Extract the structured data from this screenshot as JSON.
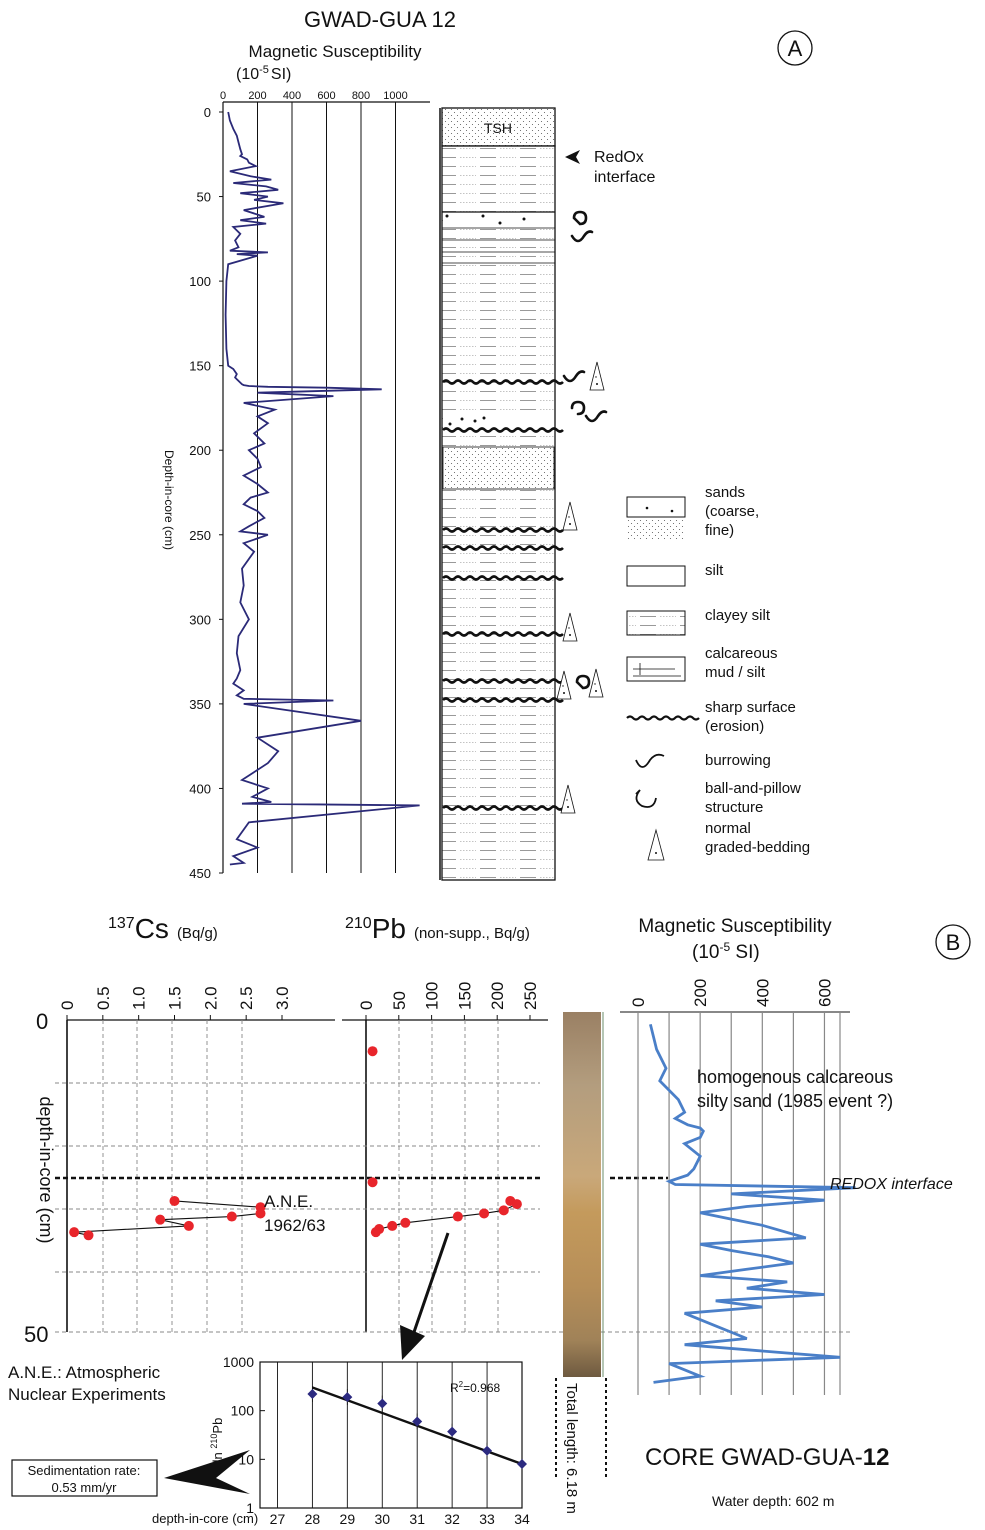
{
  "panelA": {
    "title": "GWAD-GUA 12",
    "letter": "A",
    "ms_title1": "Magnetic Susceptibility",
    "ms_title2": "(10",
    "ms_title2_sup": "-5",
    "ms_title2_end": "SI)",
    "ylabel": "Depth-in-core (cm)",
    "x_ticks": [
      "0",
      "200",
      "400",
      "600",
      "800",
      "1000"
    ],
    "y_ticks": [
      "0",
      "50",
      "100",
      "150",
      "200",
      "250",
      "300",
      "350",
      "400",
      "450"
    ],
    "tsh_label": "TSH",
    "redox1": "RedOx",
    "redox2": "interface",
    "legend": [
      {
        "key": "sands",
        "lines": [
          "sands",
          "(coarse,",
          "fine)"
        ]
      },
      {
        "key": "silt",
        "lines": [
          "silt"
        ]
      },
      {
        "key": "clayey-silt",
        "lines": [
          "clayey silt"
        ]
      },
      {
        "key": "calcareous",
        "lines": [
          "calcareous",
          "mud / silt"
        ]
      },
      {
        "key": "sharp-surface",
        "lines": [
          "sharp surface",
          "(erosion)"
        ]
      },
      {
        "key": "burrowing",
        "lines": [
          "burrowing"
        ]
      },
      {
        "key": "ball-pillow",
        "lines": [
          "ball-and-pillow",
          "structure"
        ]
      },
      {
        "key": "graded",
        "lines": [
          "normal",
          "graded-bedding"
        ]
      }
    ]
  },
  "panelB": {
    "letter": "B",
    "cs_label": "Cs",
    "cs_sup": "137",
    "cs_unit": "(Bq/g)",
    "pb_label": "Pb",
    "pb_sup": "210",
    "pb_unit": "(non-supp., Bq/g)",
    "ms_title1": "Magnetic Susceptibility",
    "ms_title2": "(10",
    "ms_title2_sup": "-5",
    "ms_title2_end": " SI)",
    "ylabel": "depth-in-core (cm)",
    "y0": "0",
    "y50": "50",
    "cs_ticks": [
      "0",
      "0.5",
      "1.0",
      "1.5",
      "2.0",
      "2.5",
      "3.0"
    ],
    "pb_ticks": [
      "0",
      "50",
      "100",
      "150",
      "200",
      "250"
    ],
    "ms_ticks": [
      "0",
      "200",
      "400",
      "600"
    ],
    "ane1": "A.N.E.",
    "ane2": "1962/63",
    "ane_note1": "A.N.E.: Atmospheric",
    "ane_note2": "Nuclear Experiments",
    "homog1": "homogenous calcareous",
    "homog2": "silty sand (1985 event ?)",
    "redox": "REDOX interface",
    "total_length": "Total length: 6.18 m",
    "core_title": "CORE GWAD-GUA-",
    "core_title_bold": "12",
    "water_depth": "Water depth: 602 m",
    "sed_rate1": "Sedimentation rate:",
    "sed_rate2": "0.53 mm/yr"
  },
  "inset": {
    "ylabel": "ln ",
    "ylabel_sup": "210",
    "ylabel_end": "Pb",
    "xlabel": "depth-in-core (cm)",
    "x_ticks": [
      "27",
      "28",
      "29",
      "30",
      "31",
      "32",
      "33",
      "34"
    ],
    "y_ticks": [
      "1000",
      "100",
      "10",
      "1"
    ],
    "r2": "R",
    "r2_sup": "2",
    "r2_val": "=0.968"
  },
  "chart_data": [
    {
      "type": "line",
      "title": "Magnetic Susceptibility (10-5 SI)",
      "ylabel": "Depth-in-core (cm)",
      "xlim": [
        0,
        1200
      ],
      "ylim": [
        450,
        0
      ],
      "series": [
        {
          "name": "",
          "x": [
            30,
            40,
            60,
            80,
            90,
            100,
            110,
            100,
            120,
            140,
            150,
            190,
            40,
            160,
            280,
            60,
            250,
            320,
            100,
            260,
            180,
            350,
            120,
            240,
            100,
            250,
            60,
            100,
            70,
            90,
            40,
            260,
            80,
            200,
            30,
            20,
            15,
            20,
            30,
            60,
            80,
            70,
            80,
            90,
            100,
            110,
            120,
            150,
            260,
            600,
            920,
            200,
            640,
            120,
            300,
            200,
            260,
            180,
            240,
            150,
            200,
            220,
            120,
            200,
            260,
            160,
            120,
            200,
            240,
            150,
            100,
            260,
            120,
            180,
            110,
            120,
            100,
            150,
            90,
            80,
            100,
            80,
            60,
            90,
            120,
            80,
            100,
            120,
            640,
            120,
            800,
            200,
            320,
            260,
            110,
            260,
            170,
            280,
            110,
            1140,
            150,
            80,
            200,
            60,
            120,
            40
          ],
          "y": [
            0,
            5,
            10,
            14,
            18,
            22,
            25,
            26,
            27,
            28,
            30,
            32,
            35,
            38,
            40,
            42,
            44,
            46,
            48,
            50,
            52,
            54,
            58,
            62,
            64,
            66,
            68,
            72,
            76,
            80,
            82,
            83,
            84,
            85,
            90,
            100,
            120,
            140,
            150,
            152,
            155,
            157,
            158,
            159,
            160,
            161,
            161.5,
            162,
            162.5,
            163,
            164,
            166,
            168,
            172,
            176,
            180,
            184,
            190,
            196,
            200,
            205,
            210,
            215,
            220,
            225,
            228,
            232,
            236,
            240,
            245,
            248,
            250,
            255,
            260,
            270,
            280,
            290,
            300,
            310,
            320,
            330,
            335,
            338,
            340,
            342,
            345,
            346,
            347,
            348,
            350,
            360,
            370,
            378,
            385,
            395,
            400,
            405,
            408,
            409,
            410,
            420,
            430,
            435,
            440,
            444,
            445
          ]
        }
      ]
    },
    {
      "type": "scatter",
      "title": "137Cs (Bq/g)",
      "ylabel": "depth-in-core (cm)",
      "xlim": [
        0,
        3.0
      ],
      "ylim": [
        50,
        0
      ],
      "series": [
        {
          "name": "",
          "x": [
            1.5,
            2.7,
            2.7,
            2.3,
            1.3,
            1.7,
            0.1,
            0.3
          ],
          "y": [
            29,
            30,
            31,
            31.5,
            32,
            33,
            34,
            34.5
          ]
        }
      ]
    },
    {
      "type": "scatter",
      "title": "210Pb (non-supp., Bq/g)",
      "ylabel": "depth-in-core (cm)",
      "xlim": [
        0,
        250
      ],
      "ylim": [
        50,
        0
      ],
      "series": [
        {
          "name": "",
          "x": [
            10,
            10,
            220,
            230,
            210,
            180,
            140,
            60,
            40,
            20,
            15
          ],
          "y": [
            5,
            26,
            29,
            29.5,
            30.5,
            31,
            31.5,
            32.5,
            33,
            33.5,
            34
          ]
        }
      ]
    },
    {
      "type": "line",
      "title": "Magnetic Susceptibility (10-5 SI)",
      "ylabel": "depth-in-core (cm)",
      "xlim": [
        0,
        650
      ],
      "ylim": [
        60,
        0
      ],
      "series": [
        {
          "name": "",
          "x": [
            40,
            50,
            60,
            90,
            70,
            130,
            150,
            120,
            160,
            200,
            210,
            200,
            150,
            200,
            180,
            160,
            100,
            120,
            700,
            300,
            600,
            350,
            200,
            300,
            400,
            540,
            200,
            300,
            420,
            500,
            350,
            200,
            480,
            350,
            600,
            250,
            400,
            150,
            250,
            350,
            150,
            650,
            100,
            200,
            50
          ],
          "y": [
            1,
            3,
            5,
            8,
            10,
            13,
            15,
            16,
            17,
            17.5,
            18,
            19,
            20,
            22,
            24,
            25,
            26,
            26.5,
            27,
            28,
            29,
            30,
            31,
            32,
            33,
            35,
            36,
            37,
            38,
            39,
            40,
            41,
            42,
            43,
            44,
            45,
            46,
            47,
            49,
            51,
            52,
            54,
            55,
            57,
            58
          ]
        }
      ]
    },
    {
      "type": "scatter",
      "title": "",
      "xlabel": "depth-in-core (cm)",
      "ylabel": "ln 210Pb",
      "xlim": [
        26.5,
        34
      ],
      "ylim": [
        1,
        1000
      ],
      "log_y": true,
      "series": [
        {
          "name": "",
          "x": [
            28,
            29,
            30,
            31,
            32,
            33,
            34
          ],
          "y": [
            220,
            190,
            140,
            60,
            37,
            15,
            8
          ]
        }
      ],
      "annotations": [
        "R2=0.968"
      ]
    }
  ]
}
